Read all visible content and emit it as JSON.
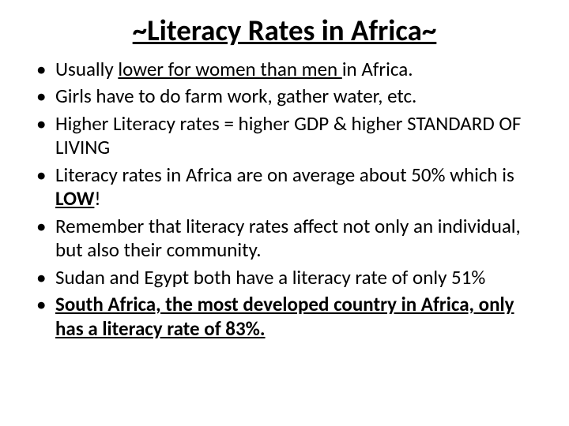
{
  "title": "~Literacy Rates in Africa~",
  "bullets": [
    {
      "pre": "Usually ",
      "underline": "lower for women than men ",
      "post": "in Africa."
    },
    {
      "plain": "Girls have to do farm work, gather water, etc."
    },
    {
      "plain": "Higher Literacy rates = higher GDP & higher STANDARD OF LIVING"
    },
    {
      "pre": "Literacy rates in Africa are on average about 50% which is ",
      "bold_underline": "LOW",
      "post_plain": "!"
    },
    {
      "plain": "Remember that literacy rates affect not only an individual, but also their community."
    },
    {
      "plain": "Sudan and Egypt both have a literacy rate of only 51%"
    },
    {
      "full_bold_underline": "South Africa, the most developed country in Africa, only has a literacy rate of 83%."
    }
  ],
  "style": {
    "background_color": "#ffffff",
    "text_color": "#000000",
    "title_fontsize": 37,
    "body_fontsize": 25,
    "font_family": "Calibri"
  }
}
